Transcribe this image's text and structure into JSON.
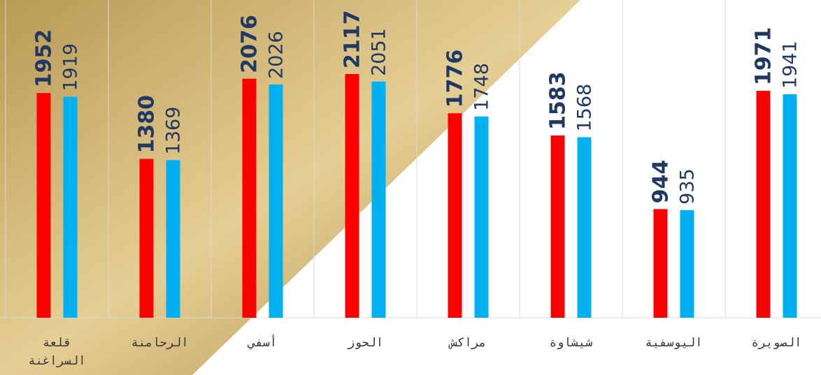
{
  "chart_data": {
    "type": "bar",
    "categories": [
      "قلعة السراغنة",
      "الرحامنة",
      "أسفي",
      "الحوز",
      "مراكش",
      "شيشاوة",
      "اليوسفية",
      "الصويرة"
    ],
    "series": [
      {
        "color": "#ff0000",
        "values": [
          1952,
          1380,
          2076,
          2117,
          1776,
          1583,
          944,
          1971
        ]
      },
      {
        "color": "#00b0f0",
        "values": [
          1919,
          1369,
          2026,
          2051,
          1748,
          1568,
          935,
          1941
        ]
      }
    ],
    "ylim": [
      0,
      2760
    ]
  }
}
